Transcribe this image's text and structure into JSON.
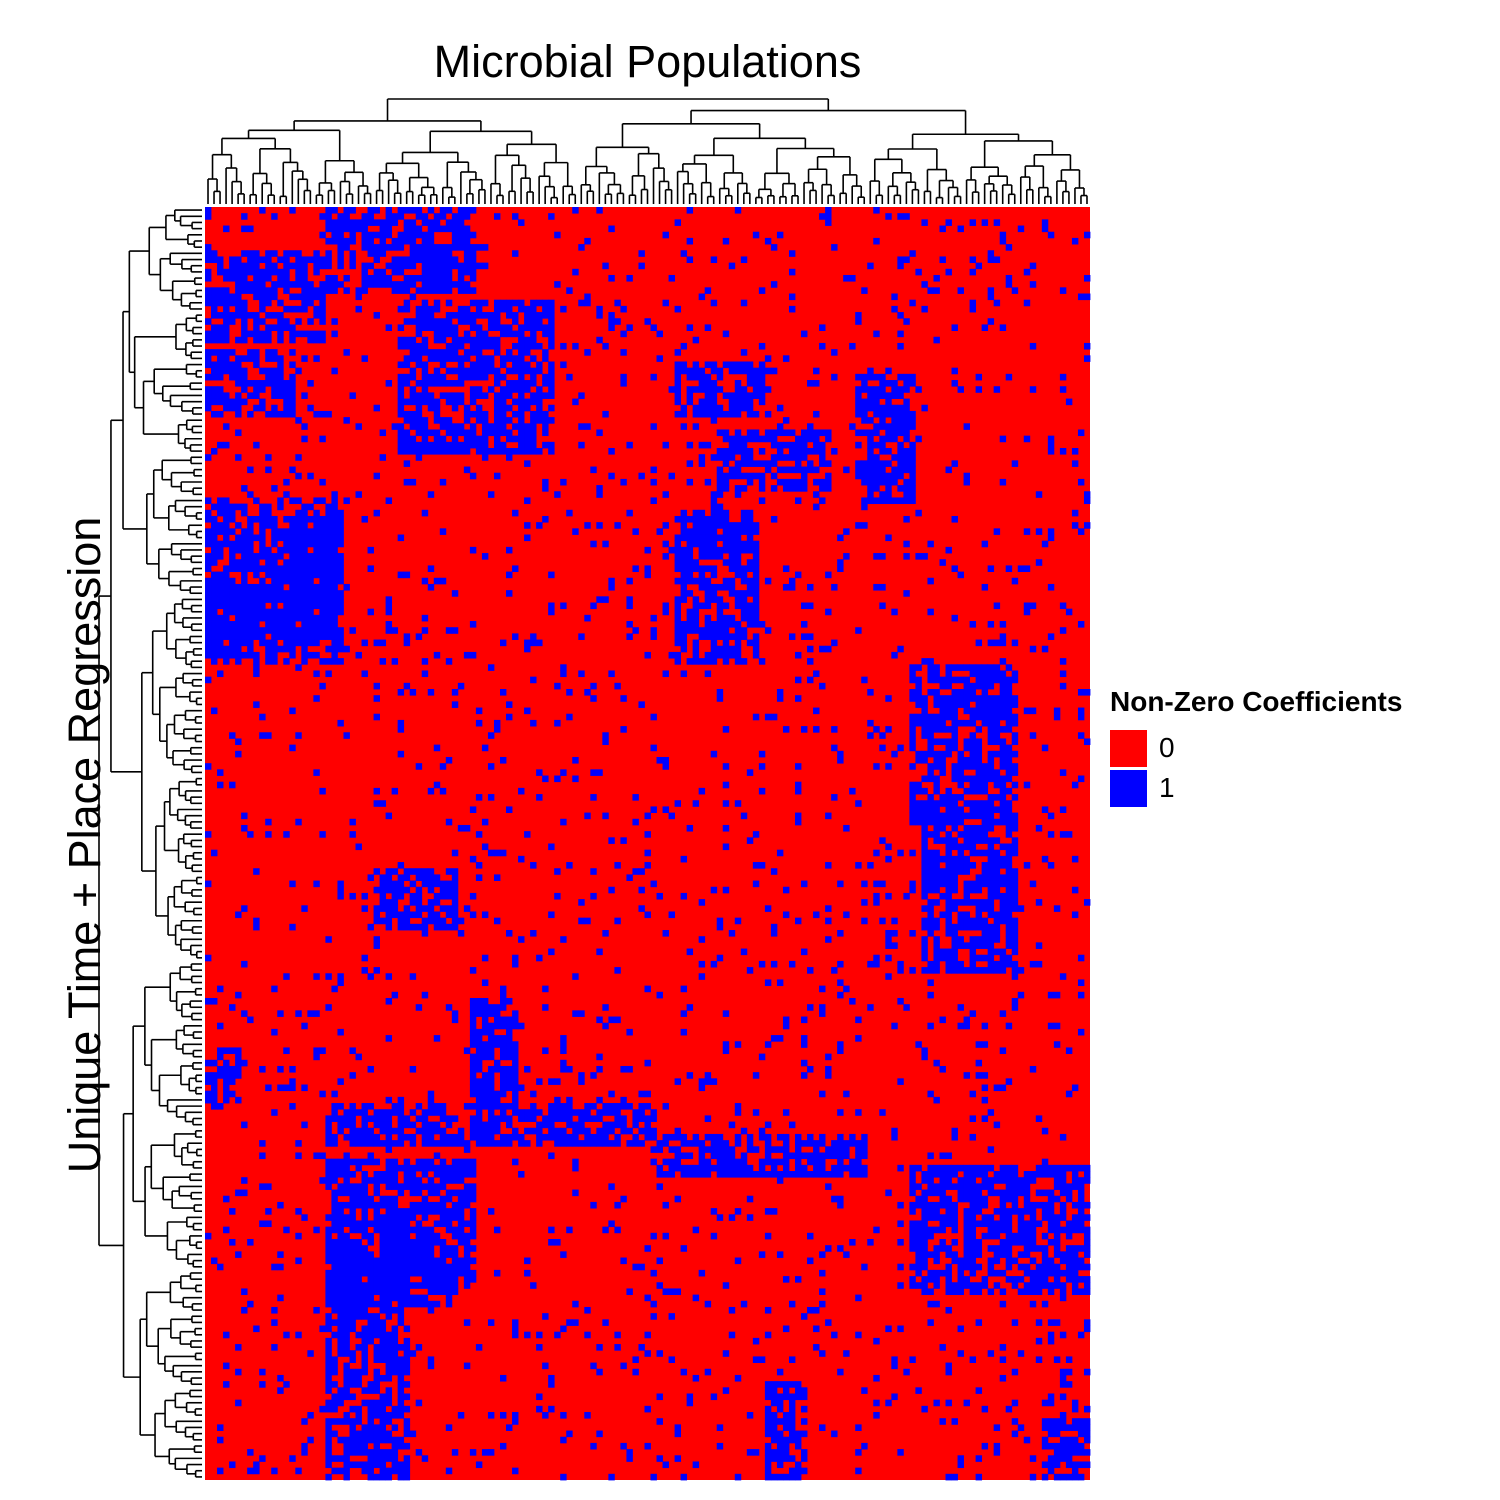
{
  "chart_data": {
    "type": "heatmap",
    "title": "Microbial Populations",
    "xlabel": "Microbial Populations",
    "ylabel": "Unique Time + Place Regression",
    "n_columns": 147,
    "n_rows": 206,
    "value_range": [
      0,
      1
    ],
    "legend": {
      "title": "Non-Zero Coefficients",
      "placement": "right",
      "entries": [
        {
          "label": "0",
          "color": "#ff0000"
        },
        {
          "label": "1",
          "color": "#0000ff"
        }
      ]
    },
    "clusters": [
      {
        "rows": [
          0,
          14
        ],
        "cols": [
          20,
          45
        ],
        "value": 1
      },
      {
        "rows": [
          7,
          22
        ],
        "cols": [
          0,
          20
        ],
        "value": 1
      },
      {
        "rows": [
          15,
          40
        ],
        "cols": [
          32,
          58
        ],
        "value": 1
      },
      {
        "rows": [
          23,
          34
        ],
        "cols": [
          0,
          15
        ],
        "value": 1
      },
      {
        "rows": [
          25,
          34
        ],
        "cols": [
          78,
          94
        ],
        "value": 1
      },
      {
        "rows": [
          27,
          48
        ],
        "cols": [
          108,
          118
        ],
        "value": 1
      },
      {
        "rows": [
          36,
          46
        ],
        "cols": [
          85,
          104
        ],
        "value": 1
      },
      {
        "rows": [
          47,
          70
        ],
        "cols": [
          0,
          22
        ],
        "value": 1
      },
      {
        "rows": [
          49,
          62
        ],
        "cols": [
          14,
          23
        ],
        "value": 1
      },
      {
        "rows": [
          49,
          58
        ],
        "cols": [
          78,
          92
        ],
        "value": 1
      },
      {
        "rows": [
          58,
          74
        ],
        "cols": [
          78,
          92
        ],
        "value": 1
      },
      {
        "rows": [
          62,
          74
        ],
        "cols": [
          0,
          23
        ],
        "value": 1
      },
      {
        "rows": [
          74,
          100
        ],
        "cols": [
          117,
          135
        ],
        "value": 1
      },
      {
        "rows": [
          100,
          124
        ],
        "cols": [
          119,
          135
        ],
        "value": 1
      },
      {
        "rows": [
          107,
          117
        ],
        "cols": [
          28,
          42
        ],
        "value": 1
      },
      {
        "rows": [
          128,
          145
        ],
        "cols": [
          44,
          52
        ],
        "value": 1
      },
      {
        "rows": [
          136,
          145
        ],
        "cols": [
          0,
          6
        ],
        "value": 1
      },
      {
        "rows": [
          145,
          152
        ],
        "cols": [
          20,
          75
        ],
        "value": 1
      },
      {
        "rows": [
          150,
          157
        ],
        "cols": [
          75,
          110
        ],
        "value": 1
      },
      {
        "rows": [
          154,
          175
        ],
        "cols": [
          20,
          45
        ],
        "value": 1
      },
      {
        "rows": [
          155,
          176
        ],
        "cols": [
          117,
          147
        ],
        "value": 1
      },
      {
        "rows": [
          168,
          178
        ],
        "cols": [
          20,
          42
        ],
        "value": 1
      },
      {
        "rows": [
          172,
          206
        ],
        "cols": [
          20,
          34
        ],
        "value": 1
      },
      {
        "rows": [
          190,
          206
        ],
        "cols": [
          93,
          100
        ],
        "value": 1
      },
      {
        "rows": [
          196,
          206
        ],
        "cols": [
          139,
          147
        ],
        "value": 1
      }
    ],
    "background_density": 0.06
  }
}
